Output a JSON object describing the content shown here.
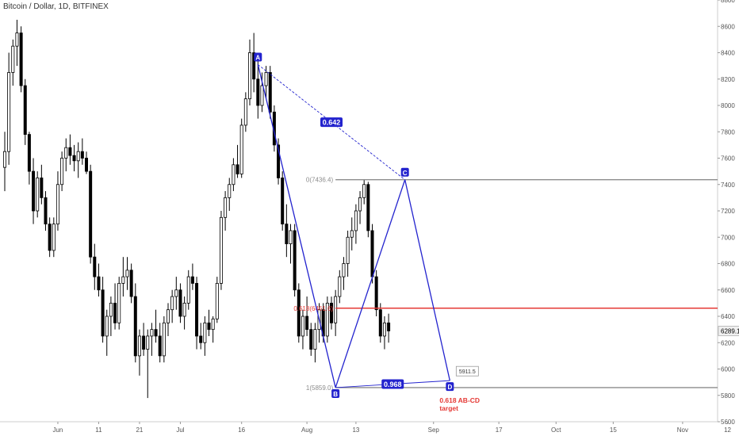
{
  "chart_title": "Bitcoin / Dollar, 1D, BITFINEX",
  "colors": {
    "candle_up": "#ffffff",
    "candle_down": "#000000",
    "candle_outline": "#000000",
    "pattern": "#2323ce",
    "level_red": "#e53935",
    "level_grey": "#8c8c8c",
    "target_red": "#e53935"
  },
  "chart_data": {
    "type": "candlestick",
    "title": "Bitcoin / Dollar, 1D, BITFINEX",
    "ylim": [
      5600,
      8800
    ],
    "y_ticks": [
      5600,
      5800,
      6000,
      6200,
      6400,
      6600,
      6800,
      7000,
      7200,
      7400,
      7600,
      7800,
      8000,
      8200,
      8400,
      8600,
      8800
    ],
    "x_ticks": [
      {
        "label": "Jun",
        "index": 13
      },
      {
        "label": "11",
        "index": 23
      },
      {
        "label": "21",
        "index": 33
      },
      {
        "label": "Jul",
        "index": 43
      },
      {
        "label": "16",
        "index": 58
      },
      {
        "label": "Aug",
        "index": 74
      },
      {
        "label": "13",
        "index": 86
      },
      {
        "label": "Sep",
        "index": 105
      },
      {
        "label": "17",
        "index": 121
      },
      {
        "label": "Oct",
        "index": 135
      },
      {
        "label": "15",
        "index": 149
      },
      {
        "label": "Nov",
        "index": 166
      },
      {
        "label": "12",
        "index": 177
      }
    ],
    "candles": [
      [
        7530,
        7800,
        7350,
        7650
      ],
      [
        7650,
        8400,
        7550,
        8250
      ],
      [
        8250,
        8500,
        8150,
        8450
      ],
      [
        8450,
        8650,
        8300,
        8550
      ],
      [
        8550,
        8600,
        8100,
        8150
      ],
      [
        8150,
        8200,
        7700,
        7780
      ],
      [
        7780,
        7800,
        7400,
        7500
      ],
      [
        7500,
        7600,
        7100,
        7200
      ],
      [
        7200,
        7500,
        7150,
        7450
      ],
      [
        7450,
        7550,
        7250,
        7300
      ],
      [
        7300,
        7350,
        7050,
        7100
      ],
      [
        7100,
        7150,
        6850,
        6900
      ],
      [
        6900,
        7150,
        6850,
        7100
      ],
      [
        7100,
        7500,
        7050,
        7400
      ],
      [
        7400,
        7650,
        7350,
        7600
      ],
      [
        7600,
        7750,
        7500,
        7680
      ],
      [
        7680,
        7780,
        7550,
        7620
      ],
      [
        7620,
        7700,
        7500,
        7580
      ],
      [
        7580,
        7720,
        7450,
        7650
      ],
      [
        7650,
        7750,
        7550,
        7600
      ],
      [
        7600,
        7650,
        7480,
        7500
      ],
      [
        7500,
        7550,
        6800,
        6850
      ],
      [
        6850,
        6950,
        6600,
        6700
      ],
      [
        6700,
        6800,
        6550,
        6600
      ],
      [
        6600,
        6700,
        6200,
        6250
      ],
      [
        6250,
        6450,
        6100,
        6400
      ],
      [
        6400,
        6550,
        6250,
        6500
      ],
      [
        6500,
        6650,
        6300,
        6350
      ],
      [
        6350,
        6700,
        6300,
        6650
      ],
      [
        6650,
        6850,
        6550,
        6700
      ],
      [
        6700,
        6850,
        6600,
        6750
      ],
      [
        6750,
        6800,
        6500,
        6550
      ],
      [
        6550,
        6650,
        6050,
        6100
      ],
      [
        6100,
        6300,
        5950,
        6250
      ],
      [
        6250,
        6350,
        6100,
        6150
      ],
      [
        6150,
        6300,
        5780,
        6250
      ],
      [
        6250,
        6350,
        6100,
        6300
      ],
      [
        6300,
        6450,
        6200,
        6250
      ],
      [
        6250,
        6350,
        6050,
        6100
      ],
      [
        6100,
        6400,
        6050,
        6350
      ],
      [
        6350,
        6500,
        6250,
        6450
      ],
      [
        6450,
        6600,
        6350,
        6550
      ],
      [
        6550,
        6700,
        6450,
        6600
      ],
      [
        6600,
        6650,
        6350,
        6400
      ],
      [
        6400,
        6550,
        6300,
        6500
      ],
      [
        6500,
        6750,
        6450,
        6700
      ],
      [
        6700,
        6800,
        6600,
        6650
      ],
      [
        6650,
        6700,
        6150,
        6250
      ],
      [
        6250,
        6350,
        6150,
        6200
      ],
      [
        6200,
        6400,
        6100,
        6350
      ],
      [
        6350,
        6450,
        6250,
        6300
      ],
      [
        6300,
        6400,
        6200,
        6380
      ],
      [
        6380,
        6700,
        6350,
        6650
      ],
      [
        6650,
        7200,
        6600,
        7150
      ],
      [
        7150,
        7350,
        7050,
        7300
      ],
      [
        7300,
        7450,
        7200,
        7400
      ],
      [
        7400,
        7600,
        7350,
        7550
      ],
      [
        7550,
        7700,
        7450,
        7480
      ],
      [
        7480,
        7900,
        7450,
        7850
      ],
      [
        7850,
        8100,
        7800,
        8050
      ],
      [
        8050,
        8500,
        8000,
        8400
      ],
      [
        8400,
        8550,
        8100,
        8200
      ],
      [
        8200,
        8350,
        7900,
        8000
      ],
      [
        8000,
        8250,
        7950,
        8150
      ],
      [
        8150,
        8300,
        8050,
        8250
      ],
      [
        8250,
        8300,
        7900,
        7950
      ],
      [
        7950,
        8000,
        7650,
        7700
      ],
      [
        7700,
        7750,
        7400,
        7450
      ],
      [
        7450,
        7500,
        7050,
        7100
      ],
      [
        7100,
        7250,
        6850,
        6950
      ],
      [
        6950,
        7100,
        6800,
        7050
      ],
      [
        7050,
        7100,
        6550,
        6600
      ],
      [
        6600,
        6650,
        6200,
        6250
      ],
      [
        6250,
        6450,
        6150,
        6400
      ],
      [
        6400,
        6550,
        6250,
        6300
      ],
      [
        6300,
        6350,
        6100,
        6150
      ],
      [
        6150,
        6350,
        6050,
        6300
      ],
      [
        6300,
        6500,
        6200,
        6450
      ],
      [
        6450,
        6500,
        6200,
        6250
      ],
      [
        6250,
        6550,
        6200,
        6500
      ],
      [
        6500,
        6550,
        6300,
        6350
      ],
      [
        6350,
        6600,
        6250,
        6550
      ],
      [
        6550,
        6750,
        6500,
        6700
      ],
      [
        6700,
        6850,
        6600,
        6800
      ],
      [
        6800,
        7050,
        6700,
        7000
      ],
      [
        7000,
        7150,
        6900,
        7050
      ],
      [
        7050,
        7250,
        6950,
        7200
      ],
      [
        7200,
        7350,
        7100,
        7300
      ],
      [
        7300,
        7436,
        7250,
        7400
      ],
      [
        7400,
        7420,
        7000,
        7050
      ],
      [
        7050,
        7100,
        6650,
        6700
      ],
      [
        6700,
        6750,
        6400,
        6450
      ],
      [
        6450,
        6500,
        6200,
        6250
      ],
      [
        6250,
        6400,
        6150,
        6350
      ],
      [
        6350,
        6420,
        6200,
        6289
      ]
    ],
    "harmonic_points": [
      {
        "label": "A",
        "index": 62,
        "price": 8310
      },
      {
        "label": "B",
        "index": 81,
        "price": 5859
      },
      {
        "label": "C",
        "index": 98,
        "price": 7436
      },
      {
        "label": "D",
        "index": 109,
        "price": 5912
      }
    ],
    "ratios": [
      {
        "label": "0.642",
        "between": [
          "A",
          "C"
        ]
      },
      {
        "label": "0.968",
        "between": [
          "B",
          "D"
        ]
      }
    ],
    "levels": [
      {
        "label": "0(7436.4)",
        "price": 7436.4,
        "color": "grey"
      },
      {
        "label": "0.618(6461.6)",
        "price": 6461.6,
        "color": "red"
      },
      {
        "label": "1(5859.0)",
        "price": 5859.0,
        "color": "grey"
      }
    ],
    "annotations": [
      {
        "text": "5911.5",
        "price": 5911.5
      },
      {
        "text": "0.618 AB-CD",
        "price": 5912
      },
      {
        "text": "target",
        "price": 5912
      }
    ],
    "last_price": 6289.1
  }
}
